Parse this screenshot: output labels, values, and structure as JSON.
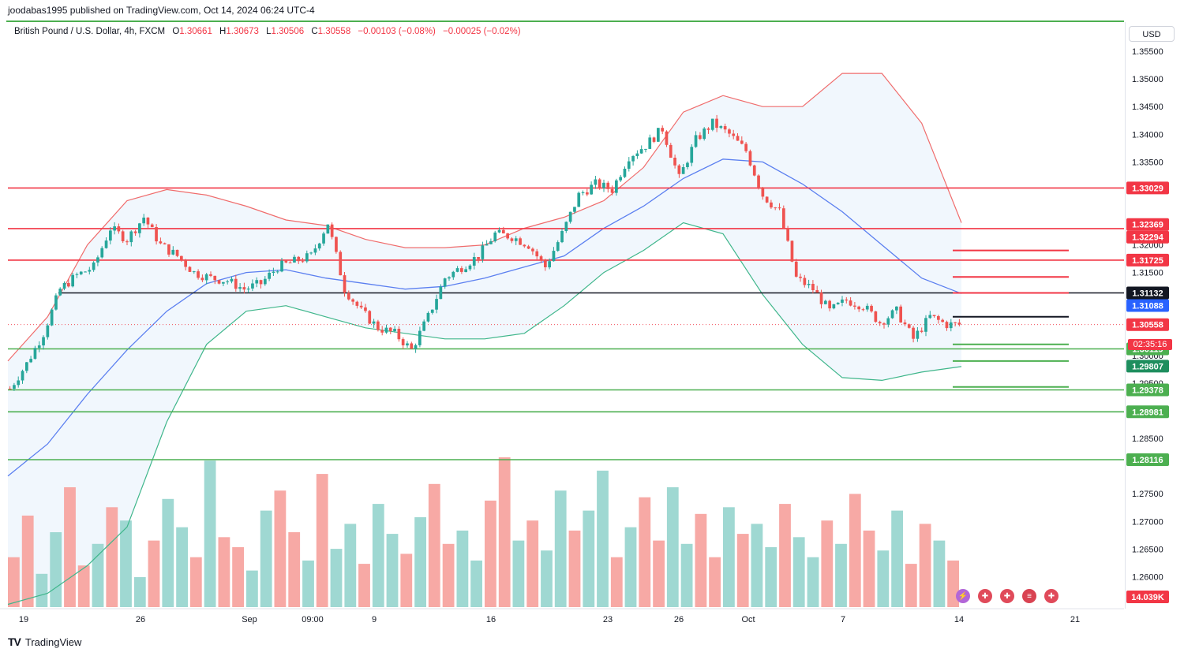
{
  "publisher": "joodabas1995 published on TradingView.com, Oct 14, 2024 06:24 UTC-4",
  "legend": {
    "symbol": "British Pound / U.S. Dollar, 4h, FXCM",
    "o_label": "O",
    "o": "1.30661",
    "h_label": "H",
    "h": "1.30673",
    "l_label": "L",
    "l": "1.30506",
    "c_label": "C",
    "c": "1.30558",
    "change": "−0.00103 (−0.08%)",
    "change2": "−0.00025 (−0.02%)"
  },
  "currency": "USD",
  "countdown": "02:35:16",
  "brand": "TradingView",
  "icons": [
    "lightning-icon",
    "uk-flag-icon",
    "uk-flag-icon",
    "us-flag-icon",
    "uk-flag-icon"
  ],
  "colors": {
    "up": "#26a69a",
    "down": "#ef5350",
    "resistance": "#f23645",
    "support": "#4caf50",
    "pivot": "#131722",
    "ma": "#5b7ff0",
    "band_upper": "#f06c6c",
    "band_lower": "#3fb68b"
  },
  "chart_data": {
    "type": "candlestick",
    "title": "British Pound / U.S. Dollar, 4h, FXCM",
    "ylim": [
      1.2545,
      1.36
    ],
    "y_ticks": [
      "1.35500",
      "1.35000",
      "1.34500",
      "1.34000",
      "1.33500",
      "1.32000",
      "1.31500",
      "1.30000",
      "1.29500",
      "1.28500",
      "1.27500",
      "1.27000",
      "1.26500",
      "1.26000"
    ],
    "x_labels": [
      "19",
      "26",
      "Sep",
      "09:00",
      "9",
      "16",
      "23",
      "26",
      "Oct",
      "7",
      "14",
      "21"
    ],
    "price_labels": [
      {
        "value": "1.33029",
        "color": "#f23645",
        "price": 1.33029
      },
      {
        "value": "1.32369",
        "color": "#f23645",
        "price": 1.32369
      },
      {
        "value": "1.32294",
        "color": "#f23645",
        "price": 1.32294
      },
      {
        "value": "1.31725",
        "color": "#f23645",
        "price": 1.31725
      },
      {
        "value": "1.31132",
        "color": "#131722",
        "price": 1.31132
      },
      {
        "value": "1.31088",
        "color": "#2962ff",
        "price": 1.31088
      },
      {
        "value": "1.30558",
        "color": "#f23645",
        "price": 1.30558
      },
      {
        "value": "1.30119",
        "color": "#4caf50",
        "price": 1.30119
      },
      {
        "value": "1.29807",
        "color": "#1e8e5e",
        "price": 1.29807
      },
      {
        "value": "1.29378",
        "color": "#4caf50",
        "price": 1.29378
      },
      {
        "value": "1.28981",
        "color": "#4caf50",
        "price": 1.28981
      },
      {
        "value": "1.28116",
        "color": "#4caf50",
        "price": 1.28116
      }
    ],
    "volume_label": "14.039K",
    "horizontal_levels": [
      {
        "price": 1.33029,
        "color": "#f23645"
      },
      {
        "price": 1.32294,
        "color": "#f23645"
      },
      {
        "price": 1.31725,
        "color": "#f23645"
      },
      {
        "price": 1.31132,
        "color": "#131722"
      },
      {
        "price": 1.30119,
        "color": "#4caf50"
      },
      {
        "price": 1.29378,
        "color": "#4caf50"
      },
      {
        "price": 1.28981,
        "color": "#4caf50"
      },
      {
        "price": 1.28116,
        "color": "#4caf50"
      }
    ],
    "projection_levels": [
      {
        "price": 1.319,
        "color": "#f23645"
      },
      {
        "price": 1.3142,
        "color": "#f23645"
      },
      {
        "price": 1.31132,
        "color": "#f23645"
      },
      {
        "price": 1.307,
        "color": "#131722"
      },
      {
        "price": 1.302,
        "color": "#4caf50"
      },
      {
        "price": 1.299,
        "color": "#4caf50"
      },
      {
        "price": 1.2943,
        "color": "#4caf50"
      }
    ],
    "price_path": [
      1.294,
      1.2985,
      1.304,
      1.312,
      1.3145,
      1.316,
      1.323,
      1.321,
      1.325,
      1.32,
      1.318,
      1.315,
      1.314,
      1.3135,
      1.312,
      1.313,
      1.316,
      1.317,
      1.318,
      1.324,
      1.312,
      1.308,
      1.305,
      1.304,
      1.301,
      1.307,
      1.314,
      1.316,
      1.318,
      1.322,
      1.3215,
      1.32,
      1.316,
      1.322,
      1.329,
      1.331,
      1.33,
      1.336,
      1.338,
      1.341,
      1.332,
      1.339,
      1.342,
      1.34,
      1.337,
      1.329,
      1.326,
      1.314,
      1.312,
      1.308,
      1.31,
      1.309,
      1.306,
      1.308,
      1.303,
      1.307,
      1.3056
    ],
    "upper_band": [
      1.299,
      1.307,
      1.32,
      1.328,
      1.33,
      1.329,
      1.327,
      1.3245,
      1.3235,
      1.321,
      1.3195,
      1.3195,
      1.32,
      1.323,
      1.325,
      1.328,
      1.334,
      1.344,
      1.347,
      1.345,
      1.345,
      1.351,
      1.351,
      1.342,
      1.324
    ],
    "ma_line": [
      1.2782,
      1.284,
      1.293,
      1.301,
      1.308,
      1.313,
      1.315,
      1.3155,
      1.314,
      1.313,
      1.312,
      1.3125,
      1.314,
      1.316,
      1.318,
      1.323,
      1.327,
      1.332,
      1.3355,
      1.335,
      1.331,
      1.326,
      1.32,
      1.314,
      1.3112
    ],
    "lower_band": [
      1.255,
      1.257,
      1.262,
      1.269,
      1.288,
      1.302,
      1.308,
      1.309,
      1.307,
      1.305,
      1.304,
      1.303,
      1.303,
      1.304,
      1.309,
      1.315,
      1.319,
      1.324,
      1.322,
      1.311,
      1.302,
      1.296,
      1.2955,
      1.297,
      1.298
    ],
    "volumes": [
      30,
      55,
      20,
      45,
      72,
      25,
      38,
      60,
      52,
      18,
      40,
      65,
      48,
      30,
      88,
      42,
      36,
      22,
      58,
      70,
      45,
      28,
      80,
      35,
      50,
      26,
      62,
      44,
      32,
      54,
      74,
      38,
      46,
      28,
      64,
      90,
      40,
      52,
      34,
      70,
      46,
      58,
      82,
      30,
      48,
      66,
      40,
      72,
      38,
      56,
      30,
      60,
      44,
      50,
      36,
      62,
      42,
      30,
      52,
      38,
      68,
      46,
      34,
      58,
      26,
      50,
      40,
      28
    ]
  }
}
